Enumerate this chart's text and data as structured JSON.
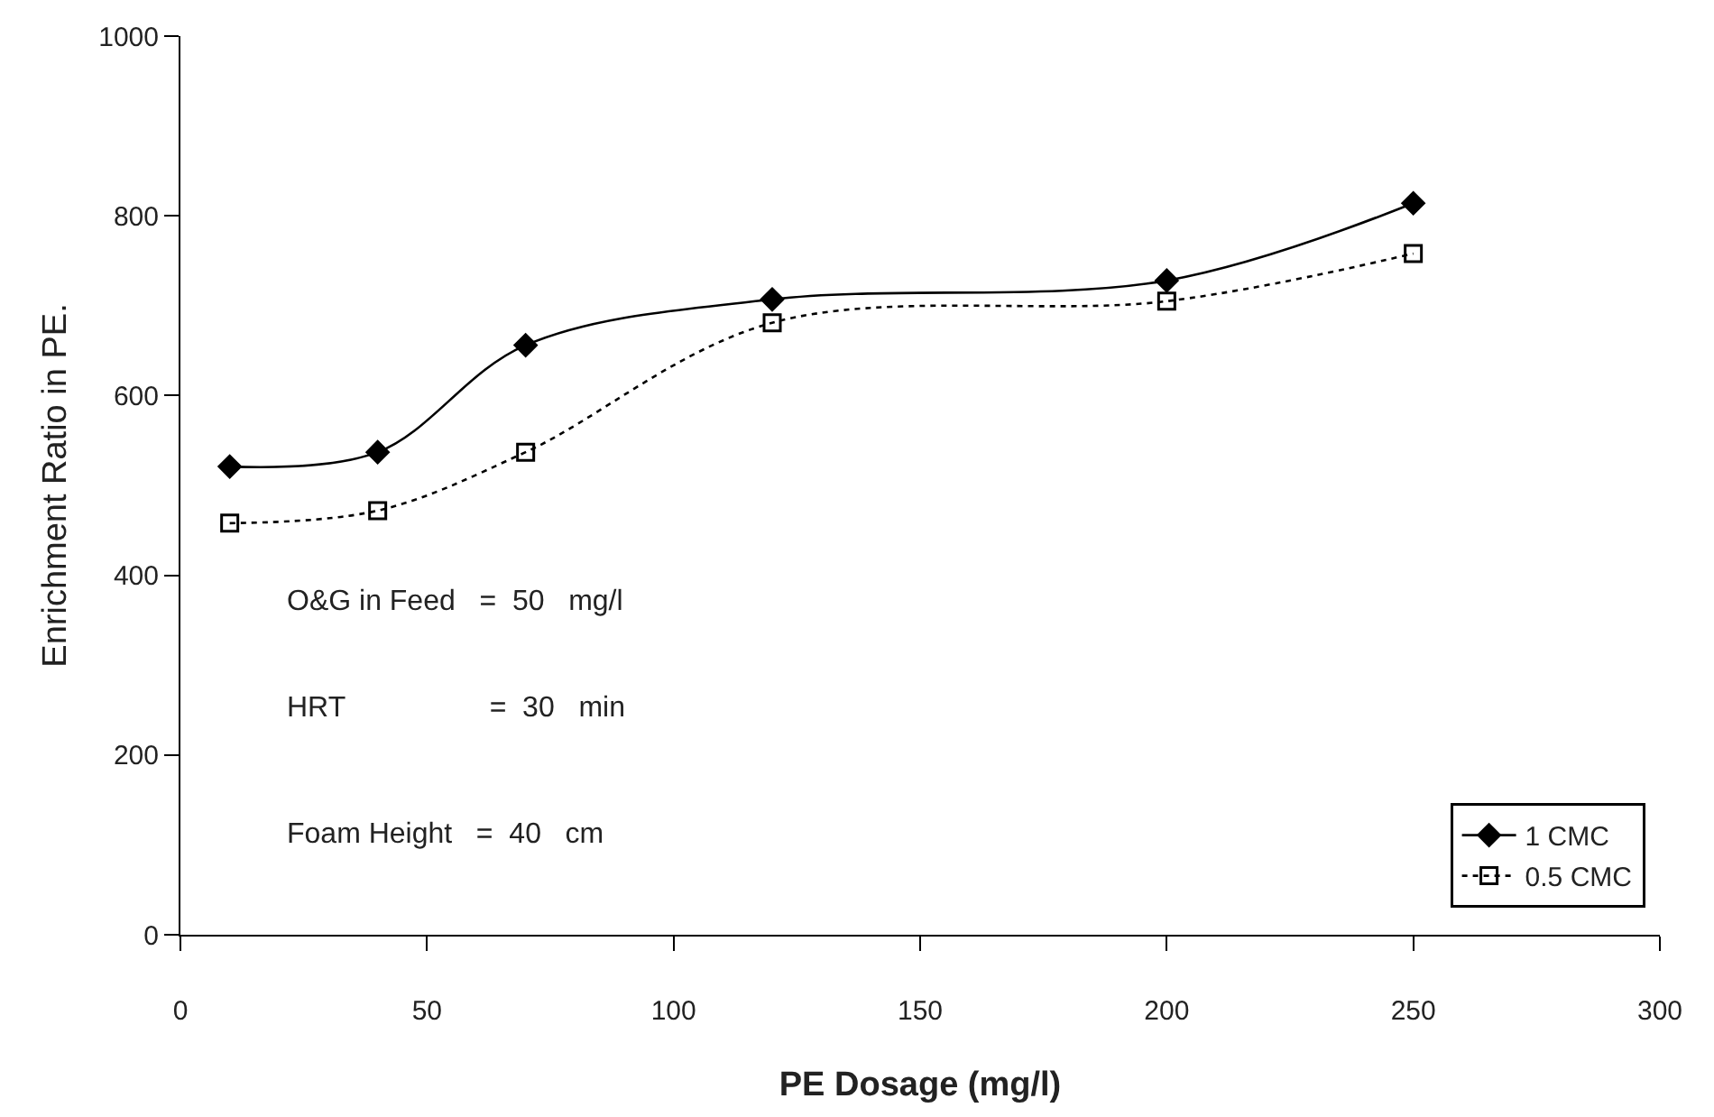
{
  "chart_data": {
    "type": "line",
    "xlabel": "PE Dosage (mg/l)",
    "ylabel": "Enrichment Ratio in PE.",
    "x": [
      10,
      40,
      70,
      120,
      200,
      250
    ],
    "series": [
      {
        "name": "1 CMC",
        "color": "#000000",
        "values": [
          521,
          537,
          656,
          707,
          728,
          814
        ],
        "marker": "diamond",
        "line_style": "solid"
      },
      {
        "name": "0.5 CMC",
        "color": "#000000",
        "values": [
          458,
          472,
          537,
          681,
          705,
          758
        ],
        "marker": "square",
        "line_style": "dotted"
      }
    ],
    "xlim": [
      0,
      300
    ],
    "xticks": [
      0,
      50,
      100,
      150,
      200,
      250,
      300
    ],
    "ylim": [
      0,
      1000
    ],
    "yticks": [
      0,
      200,
      400,
      600,
      800,
      1000
    ],
    "legend": "bottom right",
    "annotations": [
      "O&G in Feed   =  50   mg/l",
      "HRT                  =  30   min",
      "Foam Height   =  40   cm"
    ]
  }
}
